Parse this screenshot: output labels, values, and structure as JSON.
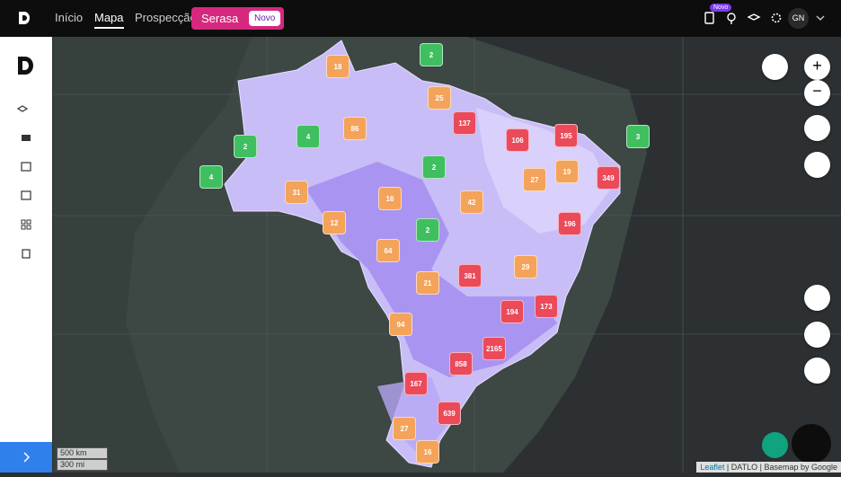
{
  "nav": [
    "Início",
    "Mapa",
    "Prospecção"
  ],
  "serasa": {
    "label": "Serasa",
    "badge": "Novo"
  },
  "header": {
    "new_tag": "Novo",
    "user_initials": "GN"
  },
  "clusters": [
    {
      "count": 18,
      "color": "#f4a35a"
    },
    {
      "count": 2,
      "color": "#3fbf5f"
    },
    {
      "count": 25,
      "color": "#f4a35a"
    },
    {
      "count": 137,
      "color": "#ea4a5a"
    },
    {
      "count": 86,
      "color": "#f4a35a"
    },
    {
      "count": 4,
      "color": "#3fbf5f"
    },
    {
      "count": 2,
      "color": "#3fbf5f"
    },
    {
      "count": 106,
      "color": "#ea4a5a"
    },
    {
      "count": 195,
      "color": "#ea4a5a"
    },
    {
      "count": 3,
      "color": "#3fbf5f"
    },
    {
      "count": 2,
      "color": "#3fbf5f"
    },
    {
      "count": 4,
      "color": "#3fbf5f"
    },
    {
      "count": 27,
      "color": "#f4a35a"
    },
    {
      "count": 19,
      "color": "#f4a35a"
    },
    {
      "count": 349,
      "color": "#ea4a5a"
    },
    {
      "count": 31,
      "color": "#f4a35a"
    },
    {
      "count": 16,
      "color": "#f4a35a"
    },
    {
      "count": 42,
      "color": "#f4a35a"
    },
    {
      "count": 12,
      "color": "#f4a35a"
    },
    {
      "count": 196,
      "color": "#ea4a5a"
    },
    {
      "count": 2,
      "color": "#3fbf5f"
    },
    {
      "count": 64,
      "color": "#f4a35a"
    },
    {
      "count": 29,
      "color": "#f4a35a"
    },
    {
      "count": 381,
      "color": "#ea4a5a"
    },
    {
      "count": 21,
      "color": "#f4a35a"
    },
    {
      "count": 194,
      "color": "#ea4a5a"
    },
    {
      "count": 173,
      "color": "#ea4a5a"
    },
    {
      "count": 94,
      "color": "#f4a35a"
    },
    {
      "count": 2165,
      "color": "#ea4a5a"
    },
    {
      "count": 858,
      "color": "#ea4a5a"
    },
    {
      "count": 167,
      "color": "#ea4a5a"
    },
    {
      "count": 639,
      "color": "#ea4a5a"
    },
    {
      "count": 27,
      "color": "#f4a35a"
    },
    {
      "count": 16,
      "color": "#f4a35a"
    }
  ],
  "scale": [
    "500 km",
    "300 mi"
  ],
  "attribution": [
    "Leaflet",
    "DATLO",
    "Basemap by Google"
  ]
}
